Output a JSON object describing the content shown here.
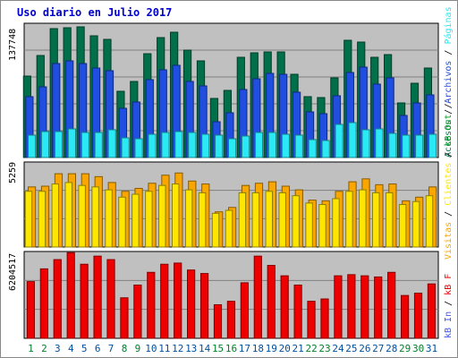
{
  "title": "Uso diario en Julio 2017",
  "colors": {
    "background": "#c0c0c0",
    "grid": "#808080",
    "title": "#0000cc",
    "accesos": "#006f4a",
    "archivos": "#1f4ee0",
    "paginas": "#2ae8f4",
    "visitas": "#f9a600",
    "clientes": "#ffe600",
    "kb_out": "#ff9a1a",
    "kb_in": "#3c55f0",
    "kb_f": "#ef0000",
    "kb_total": "#e01010",
    "weekday": "#004f9e",
    "weekend": "#00802b"
  },
  "chart_data": [
    {
      "type": "bar",
      "panel": "top",
      "ytick_label": "137748",
      "ylim": [
        0,
        150000
      ],
      "categories": [
        "1",
        "2",
        "3",
        "4",
        "5",
        "6",
        "7",
        "8",
        "9",
        "10",
        "11",
        "12",
        "13",
        "14",
        "15",
        "16",
        "17",
        "18",
        "19",
        "20",
        "21",
        "22",
        "23",
        "24",
        "25",
        "26",
        "27",
        "28",
        "29",
        "30",
        "31"
      ],
      "weekend": [
        1,
        2,
        8,
        9,
        15,
        16,
        22,
        23,
        29,
        30
      ],
      "series": [
        {
          "name": "Accesos",
          "values": [
            91000,
            114000,
            144000,
            145000,
            146000,
            136000,
            132000,
            74000,
            85000,
            116000,
            134000,
            140000,
            120000,
            108000,
            66000,
            75000,
            112000,
            117000,
            118000,
            118000,
            93000,
            68000,
            67000,
            89000,
            131000,
            129000,
            112000,
            115000,
            61000,
            83000,
            100000
          ]
        },
        {
          "name": "Archivos",
          "values": [
            68000,
            79000,
            105000,
            108000,
            105000,
            100000,
            97000,
            55000,
            62000,
            87000,
            98000,
            103000,
            85000,
            80000,
            40000,
            50000,
            76000,
            88000,
            94000,
            93000,
            73000,
            51000,
            49000,
            69000,
            95000,
            101000,
            82000,
            89000,
            47000,
            61000,
            70000
          ]
        },
        {
          "name": "Páginas",
          "values": [
            25000,
            29000,
            29000,
            32000,
            28000,
            28000,
            31000,
            22000,
            21000,
            26000,
            28000,
            29000,
            28000,
            26000,
            25000,
            21000,
            24000,
            28000,
            28000,
            26000,
            25000,
            20000,
            19000,
            37000,
            39000,
            31000,
            32000,
            27000,
            25000,
            25000,
            26000
          ]
        }
      ]
    },
    {
      "type": "bar",
      "panel": "middle",
      "ytick_label": "5259",
      "ylim": [
        0,
        5800
      ],
      "categories": [
        "1",
        "2",
        "3",
        "4",
        "5",
        "6",
        "7",
        "8",
        "9",
        "10",
        "11",
        "12",
        "13",
        "14",
        "15",
        "16",
        "17",
        "18",
        "19",
        "20",
        "21",
        "22",
        "23",
        "24",
        "25",
        "26",
        "27",
        "28",
        "29",
        "30",
        "31"
      ],
      "series": [
        {
          "name": "Visitas",
          "values": [
            4100,
            4150,
            5000,
            5000,
            5000,
            4800,
            4400,
            3800,
            4000,
            4350,
            4900,
            5050,
            4500,
            4300,
            2400,
            2700,
            4200,
            4350,
            4450,
            4150,
            3900,
            3200,
            3150,
            3800,
            4450,
            4650,
            4250,
            4300,
            3150,
            3400,
            4100
          ]
        },
        {
          "name": "Clientes",
          "values": [
            3800,
            3800,
            4300,
            4400,
            4200,
            4100,
            3900,
            3400,
            3600,
            3800,
            4200,
            4300,
            3900,
            3700,
            2300,
            2500,
            3700,
            3700,
            3800,
            3700,
            3500,
            3000,
            2900,
            3300,
            3800,
            3900,
            3700,
            3700,
            2900,
            3100,
            3500
          ]
        }
      ]
    },
    {
      "type": "bar",
      "panel": "bottom",
      "ytick_label": "6204517",
      "ylim": [
        0,
        7500000
      ],
      "categories": [
        "1",
        "2",
        "3",
        "4",
        "5",
        "6",
        "7",
        "8",
        "9",
        "10",
        "11",
        "12",
        "13",
        "14",
        "15",
        "16",
        "17",
        "18",
        "19",
        "20",
        "21",
        "22",
        "23",
        "24",
        "25",
        "26",
        "27",
        "28",
        "29",
        "30",
        "31"
      ],
      "series": [
        {
          "name": "KB F",
          "values": [
            4900000,
            6000000,
            6800000,
            7400000,
            6400000,
            7100000,
            6800000,
            3500000,
            4600000,
            5700000,
            6400000,
            6500000,
            5900000,
            5600000,
            2900000,
            3200000,
            4800000,
            7100000,
            6300000,
            5400000,
            4600000,
            3200000,
            3400000,
            5400000,
            5500000,
            5400000,
            5300000,
            5700000,
            3700000,
            3900000,
            4700000
          ]
        }
      ]
    }
  ],
  "legend": {
    "top": [
      {
        "label": "Accesos",
        "color": "#006f4a"
      },
      {
        "label": " / ",
        "color": "#000000"
      },
      {
        "label": "Archivos",
        "color": "#1f4ee0"
      },
      {
        "label": " / ",
        "color": "#000000"
      },
      {
        "label": "Páginas",
        "color": "#2ae8f4"
      }
    ],
    "middle": [
      {
        "label": "Visitas",
        "color": "#f9a600"
      },
      {
        "label": " / ",
        "color": "#000000"
      },
      {
        "label": "Clientes",
        "color": "#ffe600"
      },
      {
        "label": " / ",
        "color": "#000000"
      },
      {
        "label": "kB Out",
        "color": "#00a020"
      },
      {
        "label": " / ",
        "color": "#000000"
      }
    ],
    "bottom": [
      {
        "label": "kB In",
        "color": "#3c55f0"
      },
      {
        "label": " / ",
        "color": "#000000"
      },
      {
        "label": "kB F",
        "color": "#ef0000"
      }
    ]
  }
}
